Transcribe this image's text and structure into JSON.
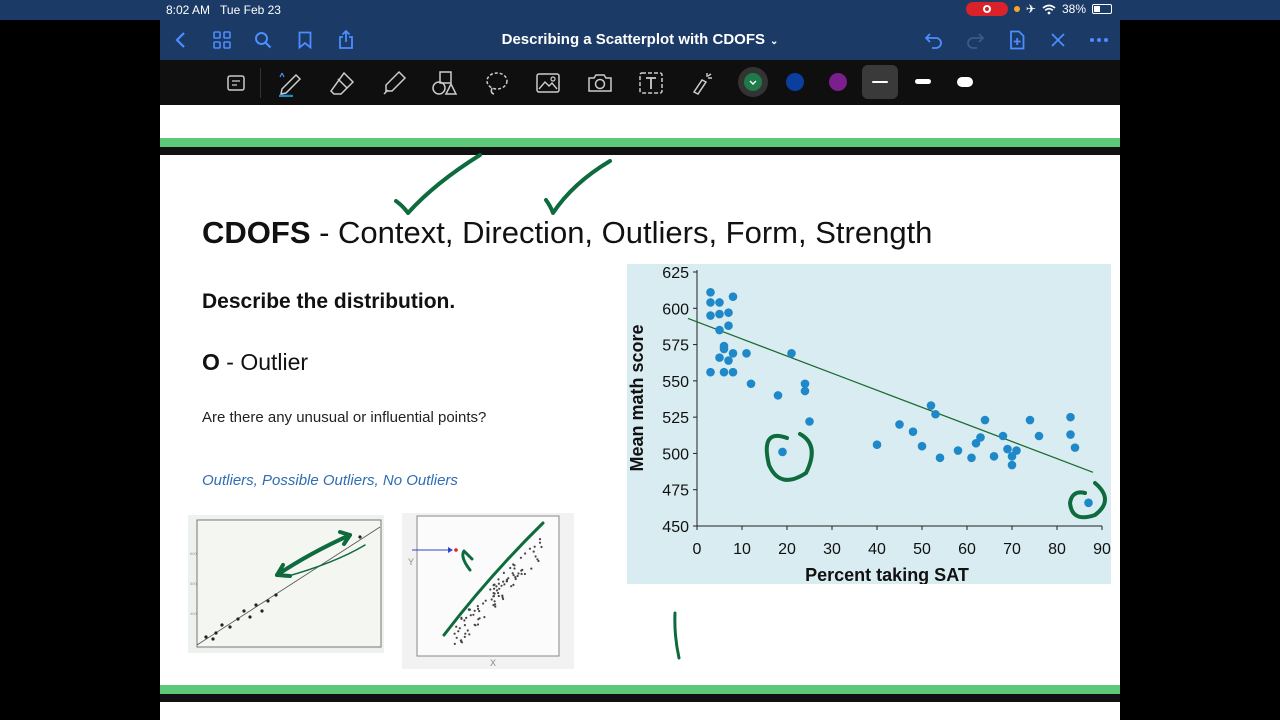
{
  "status_bar": {
    "time": "8:02 AM",
    "date": "Tue Feb 23",
    "battery": "38%"
  },
  "nav": {
    "title": "Describing a Scatterplot with CDOFS",
    "chevron": "⌄"
  },
  "toolbar": {
    "colors": [
      "#1f7a4a",
      "#0a3f9e",
      "#7a1f8c"
    ],
    "selected_color": "#1f7a4a"
  },
  "slide": {
    "heading_bold": "CDOFS",
    "heading_rest": " - Context, Direction, Outliers, Form, Strength",
    "subheading": "Describe the distribution.",
    "outlier_letter": "O",
    "outlier_rest": " - Outlier",
    "question": "Are there any unusual or influential points?",
    "options": "Outliers, Possible Outliers, No Outliers",
    "thumb2_ylabel": "Y",
    "thumb2_xlabel": "X"
  },
  "colors": {
    "accent_green": "#5cc878",
    "ink_green": "#0d6b3d",
    "chart_bg": "#d8ecf1",
    "point": "#1e88c8",
    "nav_blue": "#1b3a66"
  },
  "chart_data": {
    "type": "scatter",
    "xlabel": "Percent taking SAT",
    "ylabel": "Mean math score",
    "xlim": [
      0,
      90
    ],
    "ylim": [
      450,
      625
    ],
    "xticks": [
      "0",
      "10",
      "20",
      "30",
      "40",
      "50",
      "60",
      "70",
      "80",
      "90"
    ],
    "yticks": [
      "450",
      "475",
      "500",
      "525",
      "550",
      "575",
      "600",
      "625"
    ],
    "points": [
      [
        3,
        611
      ],
      [
        3,
        604
      ],
      [
        3,
        595
      ],
      [
        5,
        604
      ],
      [
        5,
        596
      ],
      [
        7,
        597
      ],
      [
        8,
        608
      ],
      [
        7,
        588
      ],
      [
        5,
        585
      ],
      [
        6,
        574
      ],
      [
        6,
        572
      ],
      [
        8,
        569
      ],
      [
        5,
        566
      ],
      [
        7,
        564
      ],
      [
        11,
        569
      ],
      [
        3,
        556
      ],
      [
        6,
        556
      ],
      [
        8,
        556
      ],
      [
        12,
        548
      ],
      [
        18,
        540
      ],
      [
        21,
        569
      ],
      [
        24,
        548
      ],
      [
        24,
        543
      ],
      [
        25,
        522
      ],
      [
        19,
        501
      ],
      [
        40,
        506
      ],
      [
        45,
        520
      ],
      [
        48,
        515
      ],
      [
        50,
        505
      ],
      [
        52,
        533
      ],
      [
        53,
        527
      ],
      [
        54,
        497
      ],
      [
        58,
        502
      ],
      [
        61,
        497
      ],
      [
        62,
        507
      ],
      [
        63,
        511
      ],
      [
        64,
        523
      ],
      [
        66,
        498
      ],
      [
        68,
        512
      ],
      [
        69,
        503
      ],
      [
        70,
        498
      ],
      [
        70,
        492
      ],
      [
        71,
        502
      ],
      [
        74,
        523
      ],
      [
        76,
        512
      ],
      [
        83,
        525
      ],
      [
        83,
        513
      ],
      [
        84,
        504
      ],
      [
        87,
        466
      ]
    ],
    "trend_line": {
      "x": [
        -2,
        88
      ],
      "y": [
        593,
        487
      ]
    }
  }
}
